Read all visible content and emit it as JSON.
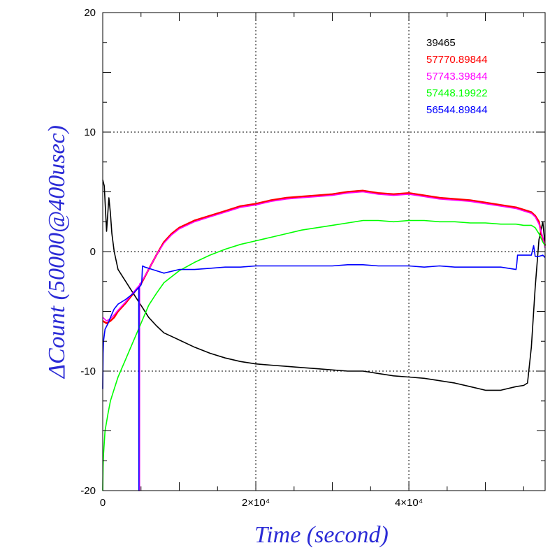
{
  "chart_data": {
    "type": "line",
    "title": "",
    "xlabel": "Time (second)",
    "ylabel": "ΔCount (50000@400usec)",
    "axis_label_color": "#2b2bd6",
    "xlim": [
      0,
      57800
    ],
    "ylim": [
      -20,
      20
    ],
    "x_ticks": [
      {
        "value": 0,
        "label": "0"
      },
      {
        "value": 20000,
        "label": "2×10⁴"
      },
      {
        "value": 40000,
        "label": "4×10⁴"
      }
    ],
    "y_ticks": [
      {
        "value": -20,
        "label": "-20"
      },
      {
        "value": -10,
        "label": "-10"
      },
      {
        "value": 0,
        "label": "0"
      },
      {
        "value": 10,
        "label": "10"
      },
      {
        "value": 20,
        "label": "20"
      }
    ],
    "grid": "dotted at labeled ticks",
    "legend_position": "top-right",
    "series": [
      {
        "name": "39465",
        "color": "#000000",
        "x": [
          0,
          200,
          500,
          800,
          1000,
          1200,
          1500,
          2000,
          3000,
          4000,
          5000,
          6000,
          7000,
          8000,
          10000,
          12000,
          14000,
          16000,
          18000,
          20000,
          22000,
          24000,
          26000,
          28000,
          30000,
          32000,
          34000,
          36000,
          38000,
          40000,
          42000,
          44000,
          46000,
          48000,
          50000,
          52000,
          54000,
          55000,
          55500,
          56000,
          56500,
          57000,
          57500,
          57800
        ],
        "y": [
          6,
          5.5,
          1.7,
          4.5,
          3.2,
          1.5,
          0,
          -1.5,
          -2.5,
          -3.5,
          -4.5,
          -5.5,
          -6.2,
          -6.8,
          -7.4,
          -8.0,
          -8.5,
          -8.9,
          -9.2,
          -9.4,
          -9.5,
          -9.6,
          -9.7,
          -9.8,
          -9.9,
          -10.0,
          -10.0,
          -10.2,
          -10.4,
          -10.5,
          -10.6,
          -10.8,
          -11.0,
          -11.3,
          -11.6,
          -11.6,
          -11.3,
          -11.2,
          -11.0,
          -8.0,
          -3.0,
          1.0,
          2.5,
          0.5
        ]
      },
      {
        "name": "57770.89844",
        "color": "#ff0000",
        "x": [
          0,
          500,
          1000,
          1500,
          2000,
          3000,
          4000,
          5000,
          6000,
          7000,
          8000,
          9000,
          10000,
          12000,
          14000,
          16000,
          18000,
          20000,
          22000,
          24000,
          26000,
          28000,
          30000,
          32000,
          34000,
          36000,
          38000,
          40000,
          42000,
          44000,
          46000,
          48000,
          50000,
          52000,
          54000,
          55000,
          56000,
          56500,
          57000,
          57300,
          57800
        ],
        "y": [
          -5.8,
          -6.0,
          -5.8,
          -5.5,
          -5.0,
          -4.3,
          -3.5,
          -2.7,
          -1.5,
          -0.3,
          0.8,
          1.5,
          2.0,
          2.6,
          3.0,
          3.4,
          3.8,
          4.0,
          4.3,
          4.5,
          4.6,
          4.7,
          4.8,
          5.0,
          5.1,
          4.9,
          4.8,
          4.9,
          4.7,
          4.5,
          4.4,
          4.3,
          4.1,
          3.9,
          3.7,
          3.5,
          3.3,
          3.0,
          2.5,
          1.5,
          0.5
        ]
      },
      {
        "name": "57743.39844",
        "color": "#ff00ff",
        "x": [
          0,
          500,
          1000,
          1500,
          2000,
          3000,
          4000,
          4800,
          4810,
          4820,
          5000,
          6000,
          7000,
          8000,
          9000,
          10000,
          12000,
          14000,
          16000,
          18000,
          20000,
          22000,
          24000,
          26000,
          28000,
          30000,
          32000,
          34000,
          36000,
          38000,
          40000,
          42000,
          44000,
          46000,
          48000,
          50000,
          52000,
          54000,
          55000,
          56000,
          56500,
          57000,
          57500,
          57800
        ],
        "y": [
          -5.5,
          -5.8,
          -5.6,
          -5.3,
          -4.9,
          -4.2,
          -3.4,
          -2.8,
          -20,
          -2.7,
          -2.6,
          -1.5,
          -0.3,
          0.7,
          1.4,
          1.9,
          2.5,
          2.9,
          3.3,
          3.7,
          3.9,
          4.2,
          4.4,
          4.5,
          4.6,
          4.7,
          4.9,
          5.0,
          4.8,
          4.7,
          4.8,
          4.6,
          4.4,
          4.3,
          4.2,
          4.0,
          3.8,
          3.6,
          3.4,
          3.2,
          2.9,
          2.3,
          1.2,
          0.3
        ]
      },
      {
        "name": "57448.19922",
        "color": "#00ff00",
        "x": [
          0,
          50,
          100,
          300,
          700,
          1000,
          1500,
          2000,
          3000,
          4000,
          5000,
          6000,
          7000,
          8000,
          10000,
          12000,
          14000,
          16000,
          18000,
          20000,
          22000,
          24000,
          26000,
          28000,
          30000,
          32000,
          34000,
          36000,
          38000,
          40000,
          42000,
          44000,
          46000,
          48000,
          50000,
          52000,
          54000,
          55000,
          56000,
          56500,
          57000,
          57500,
          57800
        ],
        "y": [
          -20,
          -18,
          -17,
          -15,
          -13.5,
          -12.5,
          -11.5,
          -10.5,
          -9.0,
          -7.5,
          -6.0,
          -4.5,
          -3.5,
          -2.6,
          -1.6,
          -0.9,
          -0.3,
          0.2,
          0.6,
          0.9,
          1.2,
          1.5,
          1.8,
          2.0,
          2.2,
          2.4,
          2.6,
          2.6,
          2.5,
          2.6,
          2.6,
          2.5,
          2.5,
          2.4,
          2.4,
          2.3,
          2.3,
          2.2,
          2.2,
          2.0,
          1.5,
          0.8,
          0.5
        ]
      },
      {
        "name": "56544.89844",
        "color": "#0000ff",
        "x": [
          0,
          50,
          100,
          300,
          700,
          1000,
          1500,
          2000,
          3000,
          4000,
          4700,
          4720,
          4740,
          5000,
          5100,
          5200,
          5500,
          6000,
          7000,
          8000,
          10000,
          12000,
          14000,
          16000,
          18000,
          20000,
          22000,
          24000,
          26000,
          28000,
          30000,
          32000,
          34000,
          36000,
          38000,
          40000,
          42000,
          44000,
          46000,
          48000,
          50000,
          52000,
          54000,
          54100,
          54200,
          55000,
          56000,
          56300,
          56500,
          57000,
          57500,
          57800
        ],
        "y": [
          -11.5,
          -8.5,
          -7.5,
          -6.5,
          -6.0,
          -5.5,
          -4.8,
          -4.4,
          -4.0,
          -3.5,
          -3.0,
          -20,
          -3.0,
          -2.8,
          -2.5,
          -1.2,
          -1.3,
          -1.4,
          -1.6,
          -1.8,
          -1.5,
          -1.5,
          -1.4,
          -1.3,
          -1.3,
          -1.2,
          -1.2,
          -1.2,
          -1.2,
          -1.2,
          -1.2,
          -1.1,
          -1.1,
          -1.2,
          -1.2,
          -1.2,
          -1.3,
          -1.2,
          -1.3,
          -1.3,
          -1.3,
          -1.3,
          -1.5,
          -1.0,
          -0.3,
          -0.3,
          -0.3,
          0.5,
          -0.4,
          -0.4,
          -0.3,
          -0.5
        ]
      }
    ]
  }
}
